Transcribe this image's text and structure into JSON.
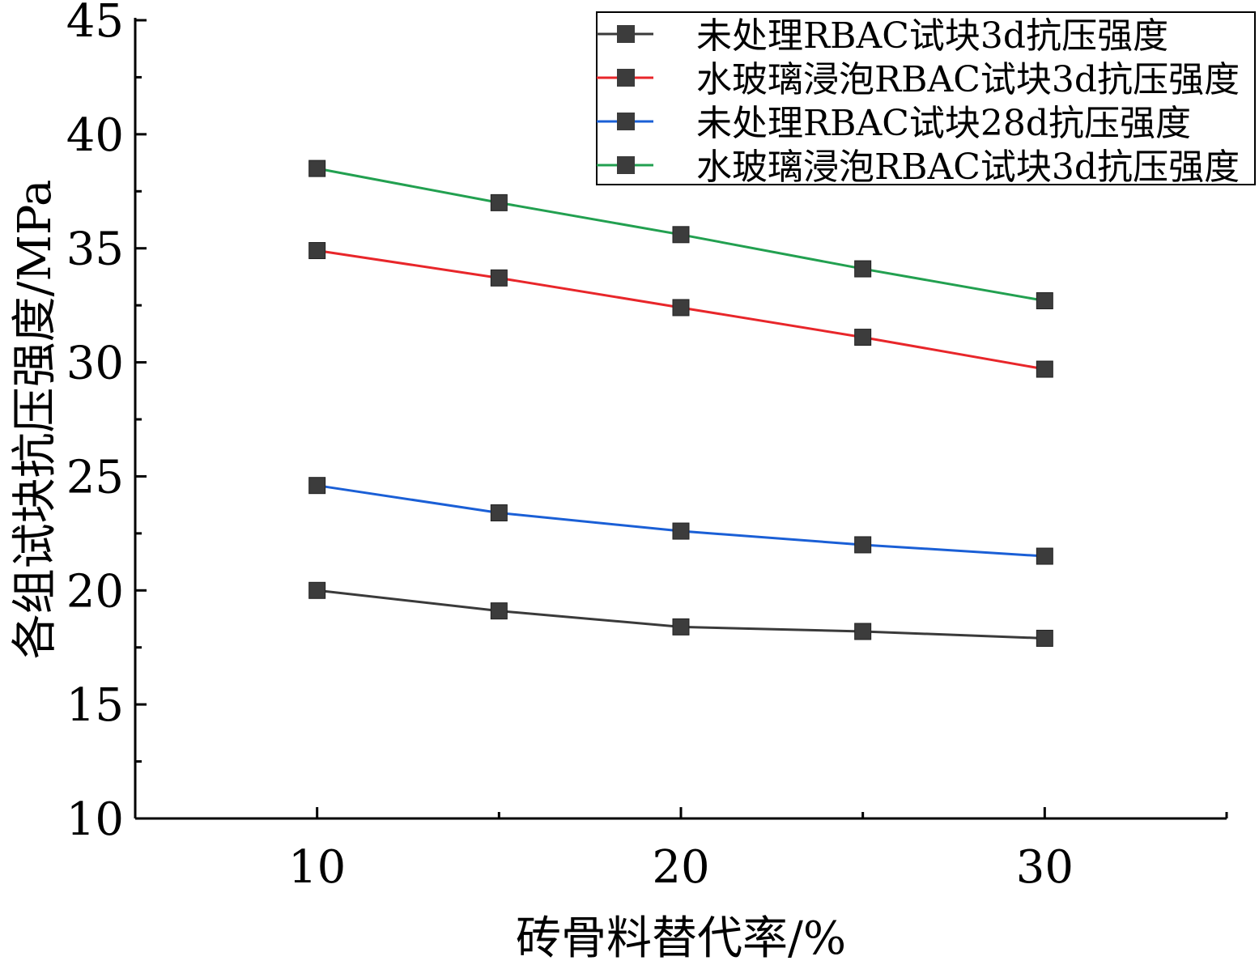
{
  "chart_data": {
    "type": "line",
    "title": "",
    "xlabel": "砖骨料替代率/%",
    "ylabel": "各组试块抗压强度/MPa",
    "xlim": [
      5,
      35
    ],
    "ylim": [
      10,
      45
    ],
    "x_ticks": [
      10,
      20,
      30
    ],
    "x_tick_labels": [
      "10",
      "20",
      "30"
    ],
    "y_ticks": [
      10,
      15,
      20,
      25,
      30,
      35,
      40,
      45
    ],
    "y_tick_labels": [
      "10",
      "15",
      "20",
      "25",
      "30",
      "35",
      "40",
      "45"
    ],
    "grid": false,
    "legend_position": "top-right",
    "x": [
      10,
      15,
      20,
      25,
      30
    ],
    "series": [
      {
        "name": "未处理RBAC试块3d抗压强度",
        "color": "#3a3a3a",
        "values": [
          20.0,
          19.1,
          18.4,
          18.2,
          17.9
        ]
      },
      {
        "name": "水玻璃浸泡RBAC试块3d抗压强度",
        "color": "#e8262a",
        "values": [
          34.9,
          33.7,
          32.4,
          31.1,
          29.7
        ]
      },
      {
        "name": "未处理RBAC试块28d抗压强度",
        "color": "#1a5fd6",
        "values": [
          24.6,
          23.4,
          22.6,
          22.0,
          21.5
        ]
      },
      {
        "name": "水玻璃浸泡RBAC试块3d抗压强度",
        "color": "#22a050",
        "values": [
          38.5,
          37.0,
          35.6,
          34.1,
          32.7
        ]
      }
    ],
    "marker_color": "#3c3c3c"
  }
}
